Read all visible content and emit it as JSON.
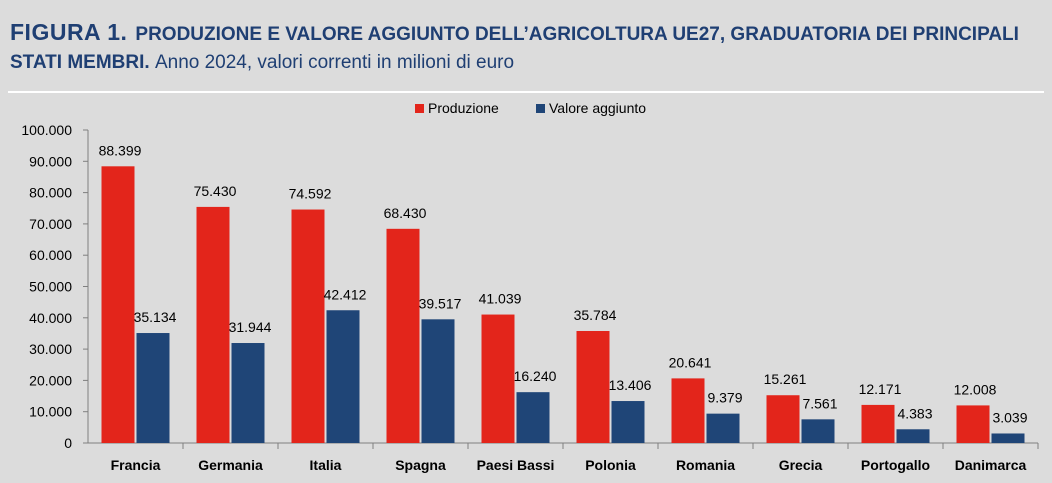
{
  "header": {
    "figure_label": "FIGURA 1.",
    "title": "PRODUZIONE E VALORE AGGIUNTO DELL’AGRICOLTURA UE27, GRADUATORIA DEI PRINCIPALI STATI MEMBRI.",
    "subtitle": "Anno 2024, valori correnti in milioni di euro"
  },
  "chart_data": {
    "type": "bar",
    "categories": [
      "Francia",
      "Germania",
      "Italia",
      "Spagna",
      "Paesi Bassi",
      "Polonia",
      "Romania",
      "Grecia",
      "Portogallo",
      "Danimarca"
    ],
    "series": [
      {
        "name": "Produzione",
        "color": "#e3251b",
        "values": [
          88399,
          75430,
          74592,
          68430,
          41039,
          35784,
          20641,
          15261,
          12171,
          12008
        ]
      },
      {
        "name": "Valore aggiunto",
        "color": "#1f4577",
        "values": [
          35134,
          31944,
          42412,
          39517,
          16240,
          13406,
          9379,
          7561,
          4383,
          3039
        ]
      }
    ],
    "ylim": [
      0,
      100000
    ],
    "yticks": [
      0,
      10000,
      20000,
      30000,
      40000,
      50000,
      60000,
      70000,
      80000,
      90000,
      100000
    ],
    "legend_position": "top-center",
    "grid": false
  }
}
